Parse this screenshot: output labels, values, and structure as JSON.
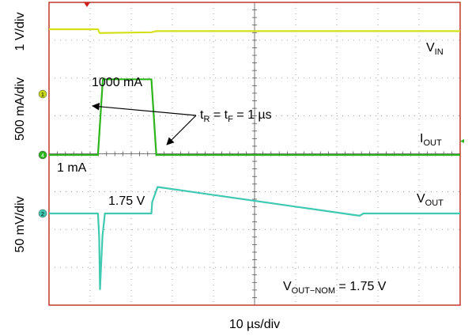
{
  "chart_data": {
    "type": "line",
    "title": "",
    "xlabel": "10 µs/div",
    "x_units": "µs",
    "xlim": [
      0,
      100
    ],
    "grid": true,
    "grid_divisions": {
      "x": 10,
      "y": 8
    },
    "colors": {
      "frame": "#c0392b",
      "grid": "#808080",
      "vin": "#d4e01a",
      "iout": "#2db51c",
      "vout": "#3ec9b0"
    },
    "y_scale_labels": [
      "1 V/div",
      "500 mA/div",
      "50 mV/div"
    ],
    "channel_markers": [
      "1",
      "4",
      "2"
    ],
    "series": [
      {
        "name": "V_IN",
        "label_main": "V",
        "label_sub": "IN",
        "color": "#d4e01a",
        "x": [
          0,
          11.9,
          12.3,
          25,
          26,
          100
        ],
        "y": [
          3.8,
          3.8,
          3.7,
          3.72,
          3.75,
          3.75
        ]
      },
      {
        "name": "I_OUT",
        "label_main": "I",
        "label_sub": "OUT",
        "color": "#2db51c",
        "x": [
          0,
          11.9,
          13.1,
          24.9,
          26.1,
          100
        ],
        "y": [
          1,
          1,
          1000,
          1000,
          1,
          1
        ]
      },
      {
        "name": "V_OUT",
        "label_main": "V",
        "label_sub": "OUT",
        "color": "#3ec9b0",
        "x": [
          0,
          11.9,
          12.2,
          12.4,
          13.0,
          13.6,
          24.9,
          25.1,
          26.4,
          75.5,
          76.5,
          100
        ],
        "y": [
          1.75,
          1.75,
          1.72,
          1.65,
          1.72,
          1.75,
          1.75,
          1.765,
          1.785,
          1.747,
          1.75,
          1.75
        ]
      }
    ],
    "annotations": {
      "iout_high": "1000 mA",
      "iout_low": "1 mA",
      "vout_level": "1.75 V",
      "rise_fall": {
        "t": "t",
        "r": "R",
        "eq1": " = t",
        "f": "F",
        "eq2": " = 1 µs"
      },
      "nominal": {
        "main": "V",
        "sub": "OUT−NOM",
        "rest": " = 1.75 V"
      }
    }
  }
}
